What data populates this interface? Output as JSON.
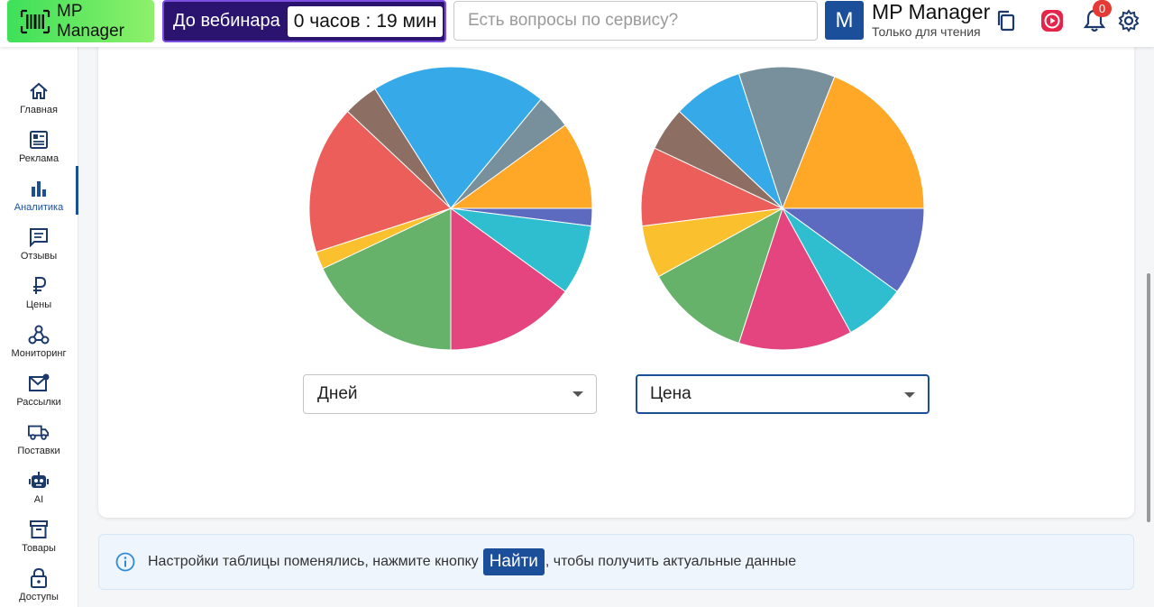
{
  "header": {
    "logo_text": "MP Manager",
    "webinar_label": "До вебинара",
    "timer_hours": "0 часов",
    "timer_sep": ":",
    "timer_minutes": "19 мин",
    "search_placeholder": "Есть вопросы по сервису?",
    "avatar_letter": "M",
    "account_name": "MP Manager",
    "account_role": "Только для чтения",
    "notification_count": "0",
    "icons": [
      "copy-icon",
      "video-icon",
      "bell-icon",
      "gear-icon"
    ]
  },
  "sidebar": {
    "items": [
      {
        "label": "Главная",
        "icon": "home-icon"
      },
      {
        "label": "Реклама",
        "icon": "ad-icon"
      },
      {
        "label": "Аналитика",
        "icon": "bar-chart-icon",
        "active": true
      },
      {
        "label": "Отзывы",
        "icon": "chat-icon"
      },
      {
        "label": "Цены",
        "icon": "ruble-icon"
      },
      {
        "label": "Мониторинг",
        "icon": "webhook-icon"
      },
      {
        "label": "Рассылки",
        "icon": "mail-icon"
      },
      {
        "label": "Поставки",
        "icon": "truck-icon"
      },
      {
        "label": "AI",
        "icon": "robot-icon"
      },
      {
        "label": "Товары",
        "icon": "archive-icon"
      },
      {
        "label": "Доступы",
        "icon": "lock-icon"
      }
    ]
  },
  "selects": {
    "left_value": "Дней",
    "right_value": "Цена"
  },
  "info": {
    "before": "Настройки таблицы поменялись, нажмите кнопку",
    "button": "Найти",
    "after": ", чтобы получить актуальные данные"
  },
  "chart_data": [
    {
      "type": "pie",
      "values": [
        2,
        8,
        15,
        18,
        2,
        17,
        4,
        20,
        4,
        10
      ],
      "colors": [
        "#5c6bc0",
        "#2fbecf",
        "#e4457e",
        "#66b26a",
        "#fbc02d",
        "#eb5e5a",
        "#8d6e63",
        "#36aae8",
        "#78909c",
        "#ffa726"
      ]
    },
    {
      "type": "pie",
      "values": [
        10,
        7,
        13,
        12,
        6,
        9,
        5,
        8,
        11,
        19
      ],
      "colors": [
        "#5c6bc0",
        "#2fbecf",
        "#e4457e",
        "#66b26a",
        "#fbc02d",
        "#eb5e5a",
        "#8d6e63",
        "#36aae8",
        "#78909c",
        "#ffa726"
      ]
    }
  ]
}
